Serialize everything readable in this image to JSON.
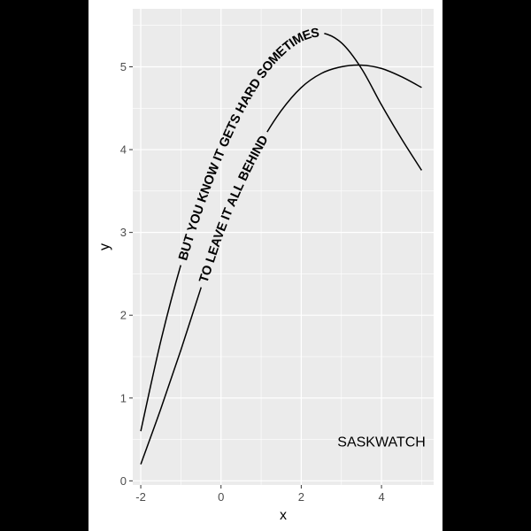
{
  "chart_data": {
    "type": "line",
    "title": "",
    "xlabel": "x",
    "ylabel": "y",
    "xlim": [
      -2.2,
      5.3
    ],
    "ylim": [
      -0.05,
      5.7
    ],
    "x_ticks": [
      -2,
      0,
      2,
      4
    ],
    "x_tick_labels": [
      "-2",
      "0",
      "2",
      "4"
    ],
    "y_ticks": [
      0,
      1,
      2,
      3,
      4,
      5
    ],
    "y_tick_labels": [
      "0",
      "1",
      "2",
      "3",
      "4",
      "5"
    ],
    "grid": true,
    "legend": "none",
    "series": [
      {
        "label_text": "BUT YOU KNOW IT GETS HARD SOMETIMES",
        "x": [
          -2,
          -1.5,
          -1,
          -0.5,
          0,
          0.5,
          1,
          1.5,
          2,
          2.5,
          3,
          3.5,
          4,
          4.5,
          5
        ],
        "y": [
          0.6,
          1.69,
          2.61,
          3.37,
          4.0,
          4.51,
          4.91,
          5.19,
          5.36,
          5.41,
          5.29,
          4.98,
          4.54,
          4.13,
          3.75
        ]
      },
      {
        "label_text": "TO LEAVE IT ALL BEHIND",
        "x": [
          -2,
          -1.5,
          -1,
          -0.5,
          0,
          0.5,
          1,
          1.5,
          2,
          2.5,
          3,
          3.5,
          4,
          4.5,
          5
        ],
        "y": [
          0.2,
          0.87,
          1.58,
          2.33,
          3.05,
          3.62,
          4.09,
          4.47,
          4.75,
          4.92,
          5.0,
          5.02,
          4.98,
          4.88,
          4.75
        ]
      }
    ],
    "annotations": [
      {
        "text": "SASKWATCH",
        "x": 4,
        "y": 0.48
      }
    ],
    "colors": {
      "panel": "#ebebeb",
      "grid": "#ffffff",
      "line": "#000000",
      "tick_text": "#4d4d4d",
      "outer_background": "#000000",
      "figure_background": "#ffffff"
    }
  }
}
